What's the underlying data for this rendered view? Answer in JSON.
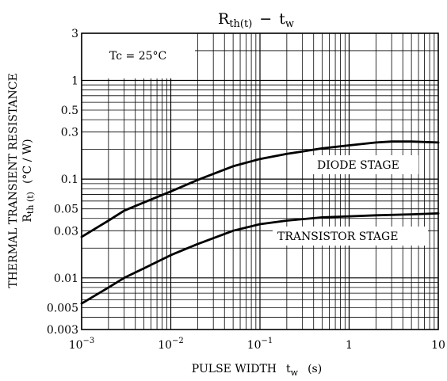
{
  "chart_data": {
    "type": "line",
    "title": {
      "main": "R",
      "main_sub": "th(t)",
      "sep": "−",
      "tw": "t",
      "tw_sub": "w"
    },
    "xlabel": {
      "text": "PULSE WIDTH",
      "sym": "t",
      "sym_sub": "w",
      "unit": "(s)"
    },
    "ylabel": {
      "line1": "THERMAL TRANSIENT RESISTANCE",
      "sym": "R",
      "sym_sub": "th (t)",
      "unit": "(°C / W)"
    },
    "x_scale": "log",
    "y_scale": "log",
    "xlim": [
      0.001,
      10
    ],
    "ylim": [
      0.003,
      3
    ],
    "x_ticks": [
      {
        "value": 0.001,
        "base": "10",
        "exp": "−3"
      },
      {
        "value": 0.01,
        "base": "10",
        "exp": "−2"
      },
      {
        "value": 0.1,
        "base": "10",
        "exp": "−1"
      },
      {
        "value": 1,
        "label": "1"
      },
      {
        "value": 10,
        "label": "10"
      }
    ],
    "y_ticks": [
      {
        "value": 3,
        "label": "3"
      },
      {
        "value": 1,
        "label": "1"
      },
      {
        "value": 0.5,
        "label": "0.5"
      },
      {
        "value": 0.3,
        "label": "0.3"
      },
      {
        "value": 0.1,
        "label": "0.1"
      },
      {
        "value": 0.05,
        "label": "0.05"
      },
      {
        "value": 0.03,
        "label": "0.03"
      },
      {
        "value": 0.01,
        "label": "0.01"
      },
      {
        "value": 0.005,
        "label": "0.005"
      },
      {
        "value": 0.003,
        "label": "0.003"
      }
    ],
    "grid": true,
    "annotation": "Tc = 25°C",
    "series": [
      {
        "name": "DIODE STAGE",
        "x": [
          0.001,
          0.002,
          0.003,
          0.005,
          0.01,
          0.02,
          0.05,
          0.1,
          0.2,
          0.5,
          1,
          2,
          3,
          5,
          10
        ],
        "y": [
          0.026,
          0.038,
          0.048,
          0.058,
          0.075,
          0.098,
          0.135,
          0.16,
          0.18,
          0.205,
          0.22,
          0.235,
          0.24,
          0.24,
          0.235
        ]
      },
      {
        "name": "TRANSISTOR STAGE",
        "x": [
          0.001,
          0.002,
          0.003,
          0.005,
          0.01,
          0.02,
          0.05,
          0.1,
          0.2,
          0.5,
          1,
          2,
          5,
          10
        ],
        "y": [
          0.0055,
          0.008,
          0.01,
          0.0125,
          0.017,
          0.022,
          0.03,
          0.035,
          0.038,
          0.041,
          0.042,
          0.043,
          0.044,
          0.045
        ]
      }
    ]
  }
}
